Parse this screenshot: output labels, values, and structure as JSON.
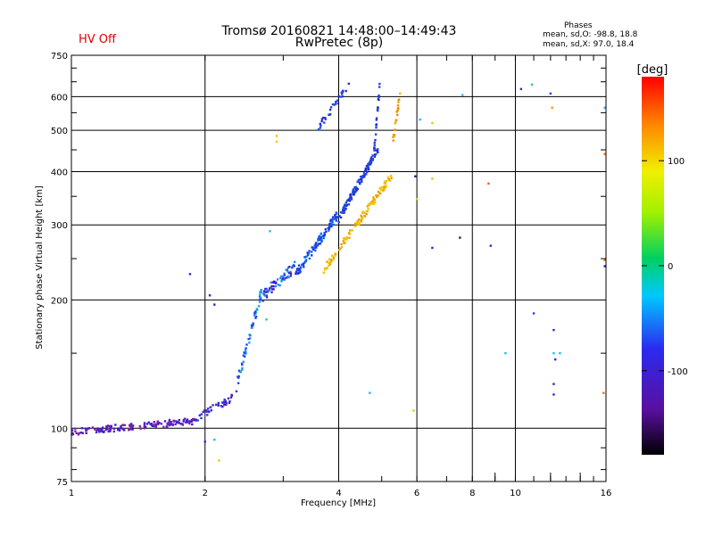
{
  "header": {
    "title_line1": "Tromsø 20160821 14:48:00–14:49:43",
    "title_line2": "RwPretec (8p)",
    "status": "HV Off",
    "phases_heading": "Phases",
    "phase_o": "mean, sd,O: -98.8, 18.8",
    "phase_x": "mean, sd,X:  97.0, 18.4"
  },
  "colorbar": {
    "label": "[deg]",
    "range": [
      -180,
      180
    ],
    "ticks": [
      "100",
      "0",
      "-100"
    ]
  },
  "chart_data": {
    "type": "scatter",
    "title": "Tromsø 20160821 14:48:00–14:49:43",
    "subtitle": "RwPretec (8p)",
    "xlabel": "Frequency [MHz]",
    "ylabel": "Stationary phase Virtual Height [km]",
    "xscale": "log",
    "yscale": "log",
    "xlim": [
      1,
      16
    ],
    "ylim": [
      75,
      750
    ],
    "x_ticks": [
      "1",
      "2",
      "4",
      "6",
      "8",
      "10",
      "16"
    ],
    "y_ticks": [
      "75",
      "100",
      "200",
      "300",
      "400",
      "500",
      "600",
      "750"
    ],
    "grid": true,
    "segments": [
      {
        "x0": 1.0,
        "x1": 1.9,
        "h0": 98,
        "h1": 104,
        "n": 160,
        "spread": 0.018,
        "color": "#3a1fd0",
        "color2": "#7a1fa8"
      },
      {
        "x0": 1.9,
        "x1": 2.3,
        "h0": 105,
        "h1": 118,
        "n": 40,
        "spread": 0.02,
        "color": "#2233e0",
        "color2": "#5522bb"
      },
      {
        "x0": 2.35,
        "x1": 2.7,
        "h0": 125,
        "h1": 215,
        "n": 55,
        "spread": 0.03,
        "color": "#2244ee",
        "color2": "#1f9fd8"
      },
      {
        "x0": 2.7,
        "x1": 3.2,
        "h0": 205,
        "h1": 240,
        "n": 60,
        "spread": 0.03,
        "color": "#3a22cc",
        "color2": "#2288ee"
      },
      {
        "x0": 3.2,
        "x1": 4.0,
        "h0": 230,
        "h1": 320,
        "n": 110,
        "spread": 0.025,
        "color": "#2233dd",
        "color2": "#1166ee"
      },
      {
        "x0": 4.0,
        "x1": 4.9,
        "h0": 310,
        "h1": 450,
        "n": 110,
        "spread": 0.02,
        "color": "#1a4fe0",
        "color2": "#2a2ad0"
      },
      {
        "x0": 4.8,
        "x1": 4.95,
        "h0": 440,
        "h1": 640,
        "n": 25,
        "spread": 0.02,
        "color": "#1a4fe0",
        "color2": "#2a2ad0"
      },
      {
        "x0": 3.7,
        "x1": 5.3,
        "h0": 235,
        "h1": 395,
        "n": 120,
        "spread": 0.02,
        "color": "#f2c400",
        "color2": "#e8a200"
      },
      {
        "x0": 5.3,
        "x1": 5.5,
        "h0": 470,
        "h1": 610,
        "n": 20,
        "spread": 0.02,
        "color": "#f0b800",
        "color2": "#e89000"
      },
      {
        "x0": 3.6,
        "x1": 4.25,
        "h0": 510,
        "h1": 640,
        "n": 30,
        "spread": 0.02,
        "color": "#1a4fe0",
        "color2": "#2a2ad0"
      }
    ],
    "scatter_points": [
      {
        "x": 1.85,
        "y": 230,
        "c": "#3a22cc"
      },
      {
        "x": 2.8,
        "y": 290,
        "c": "#22bbee"
      },
      {
        "x": 2.75,
        "y": 180,
        "c": "#22ccaa"
      },
      {
        "x": 2.1,
        "y": 195,
        "c": "#2a2ad0"
      },
      {
        "x": 2.05,
        "y": 205,
        "c": "#2a2ad0"
      },
      {
        "x": 2.0,
        "y": 93,
        "c": "#2233dd"
      },
      {
        "x": 2.1,
        "y": 94,
        "c": "#22bbee"
      },
      {
        "x": 2.15,
        "y": 84,
        "c": "#e8c800"
      },
      {
        "x": 2.9,
        "y": 470,
        "c": "#f0c400"
      },
      {
        "x": 2.9,
        "y": 485,
        "c": "#f0c400"
      },
      {
        "x": 4.7,
        "y": 121,
        "c": "#22bbee"
      },
      {
        "x": 5.9,
        "y": 110,
        "c": "#e8c800"
      },
      {
        "x": 5.95,
        "y": 390,
        "c": "#222299"
      },
      {
        "x": 6.0,
        "y": 345,
        "c": "#e8c800"
      },
      {
        "x": 6.1,
        "y": 530,
        "c": "#22bbee"
      },
      {
        "x": 6.5,
        "y": 520,
        "c": "#f0c400"
      },
      {
        "x": 6.5,
        "y": 385,
        "c": "#f0c400"
      },
      {
        "x": 6.5,
        "y": 265,
        "c": "#2a2ad0"
      },
      {
        "x": 7.5,
        "y": 280,
        "c": "#222266"
      },
      {
        "x": 7.6,
        "y": 605,
        "c": "#22bbee"
      },
      {
        "x": 8.7,
        "y": 375,
        "c": "#ff5a00"
      },
      {
        "x": 8.8,
        "y": 268,
        "c": "#2a2ad0"
      },
      {
        "x": 9.5,
        "y": 150,
        "c": "#22bbee"
      },
      {
        "x": 10.3,
        "y": 625,
        "c": "#2a2ad0"
      },
      {
        "x": 10.9,
        "y": 640,
        "c": "#22bbee"
      },
      {
        "x": 11.0,
        "y": 186,
        "c": "#2244ee"
      },
      {
        "x": 12.0,
        "y": 610,
        "c": "#2244ee"
      },
      {
        "x": 12.1,
        "y": 565,
        "c": "#e8a200"
      },
      {
        "x": 12.2,
        "y": 170,
        "c": "#2a2ad0"
      },
      {
        "x": 12.2,
        "y": 150,
        "c": "#22bbee"
      },
      {
        "x": 12.3,
        "y": 145,
        "c": "#2a2ad0"
      },
      {
        "x": 12.2,
        "y": 127,
        "c": "#2a2ad0"
      },
      {
        "x": 12.2,
        "y": 120,
        "c": "#2a2ad0"
      },
      {
        "x": 12.6,
        "y": 150,
        "c": "#22bbee"
      },
      {
        "x": 15.9,
        "y": 565,
        "c": "#22bbee"
      },
      {
        "x": 15.9,
        "y": 440,
        "c": "#ff6a00"
      },
      {
        "x": 15.9,
        "y": 240,
        "c": "#222299"
      },
      {
        "x": 15.9,
        "y": 248,
        "c": "#ff6a00"
      },
      {
        "x": 15.8,
        "y": 121,
        "c": "#ff6a00"
      }
    ]
  }
}
